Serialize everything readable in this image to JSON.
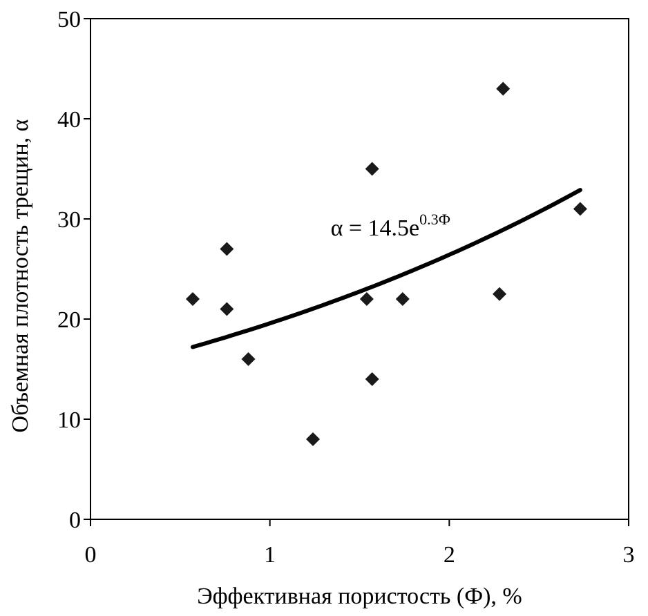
{
  "chart_data": {
    "type": "scatter",
    "xlabel": "Эффективная пористость (Ф), %",
    "ylabel": "Объемная плотность трещин, α",
    "xlim": [
      0,
      3
    ],
    "ylim": [
      0,
      50
    ],
    "xticks": [
      0,
      1,
      2,
      3
    ],
    "yticks": [
      0,
      10,
      20,
      30,
      40,
      50
    ],
    "grid": false,
    "legend": "none",
    "series": [
      {
        "marker": "diamond",
        "color": "#1a1a1a",
        "points": [
          {
            "x": 0.57,
            "y": 22
          },
          {
            "x": 0.76,
            "y": 27
          },
          {
            "x": 0.76,
            "y": 21
          },
          {
            "x": 0.88,
            "y": 16
          },
          {
            "x": 1.24,
            "y": 8
          },
          {
            "x": 1.54,
            "y": 22
          },
          {
            "x": 1.57,
            "y": 35
          },
          {
            "x": 1.57,
            "y": 14
          },
          {
            "x": 1.74,
            "y": 22
          },
          {
            "x": 2.28,
            "y": 22.5
          },
          {
            "x": 2.3,
            "y": 43
          },
          {
            "x": 2.73,
            "y": 31
          }
        ]
      }
    ],
    "fit": {
      "type": "exponential",
      "a": 14.5,
      "b": 0.3,
      "x_range": [
        0.57,
        2.73
      ],
      "color": "#000000"
    },
    "annotation": {
      "base": "α = 14.5e",
      "exponent": "0.3Ф",
      "x": 1.3,
      "y": 28
    }
  }
}
